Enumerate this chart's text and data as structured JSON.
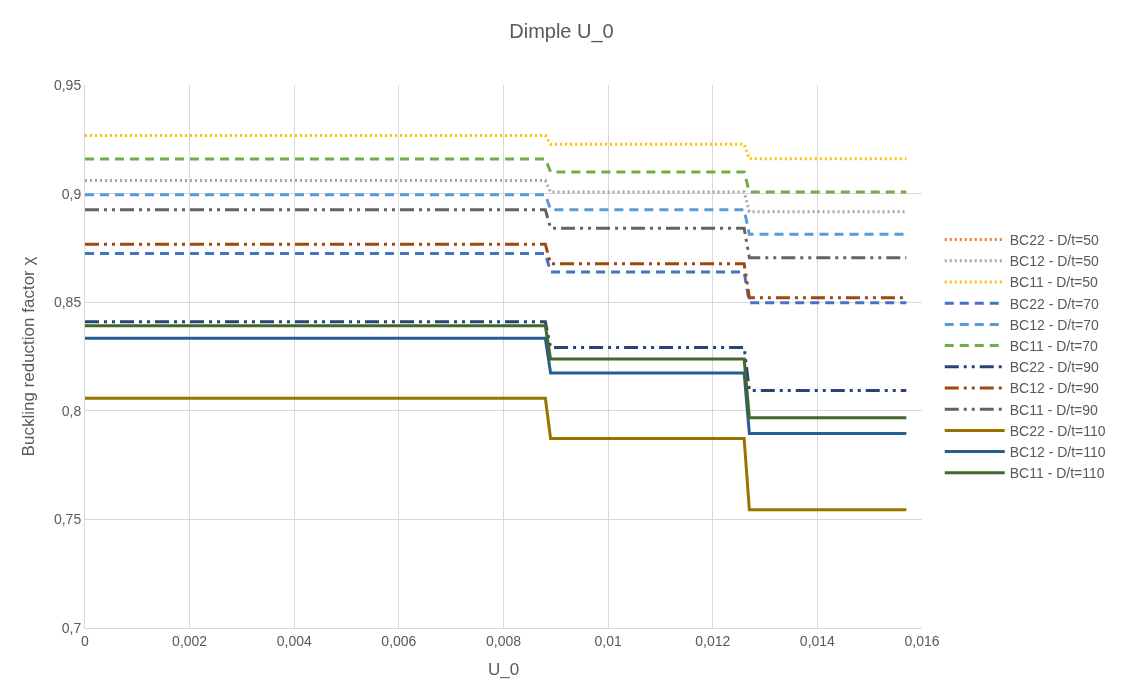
{
  "chart_data": {
    "type": "line",
    "title": "Dimple U_0",
    "xlabel": "U_0",
    "ylabel": "Buckling reduction factor χ",
    "x": [
      0,
      0.0088,
      0.0089,
      0.0126,
      0.0127,
      0.0157
    ],
    "xlim": [
      0,
      0.016
    ],
    "xticks": [
      0,
      {
        "value": 0.002,
        "label": "0,002"
      },
      {
        "value": 0.004,
        "label": "0,004"
      },
      {
        "value": 0.006,
        "label": "0,006"
      },
      {
        "value": 0.008,
        "label": "0,008"
      },
      {
        "value": 0.01,
        "label": "0,01"
      },
      {
        "value": 0.012,
        "label": "0,012"
      },
      {
        "value": 0.014,
        "label": "0,014"
      },
      {
        "value": 0.016,
        "label": "0,016"
      }
    ],
    "ylim": [
      0.7,
      0.95
    ],
    "yticks": [
      {
        "value": 0.7,
        "label": "0,7"
      },
      {
        "value": 0.75,
        "label": "0,75"
      },
      {
        "value": 0.8,
        "label": "0,8"
      },
      {
        "value": 0.85,
        "label": "0,85"
      },
      {
        "value": 0.9,
        "label": "0,9"
      },
      {
        "value": 0.95,
        "label": "0,95"
      }
    ],
    "grid": true,
    "legend": "right",
    "marker": "none",
    "series": [
      {
        "name": "BC22 - D/t=50",
        "color": "#ed7d31",
        "line_style": "dotted",
        "values": [
          null,
          null,
          null,
          null,
          null,
          null
        ]
      },
      {
        "name": "BC12 - D/t=50",
        "color": "#a5a5a5",
        "line_style": "dotted",
        "values": [
          0.906,
          0.906,
          0.9007,
          0.9007,
          0.8917,
          0.8917
        ]
      },
      {
        "name": "BC11 - D/t=50",
        "color": "#ffc000",
        "line_style": "dotted",
        "values": [
          0.9267,
          0.9267,
          0.9227,
          0.9227,
          0.916,
          0.916
        ]
      },
      {
        "name": "BC22 - D/t=70",
        "color": "#4472c4",
        "line_style": "dashed",
        "values": [
          0.8724,
          0.8724,
          0.8639,
          0.8639,
          0.8498,
          0.8498
        ]
      },
      {
        "name": "BC12 - D/t=70",
        "color": "#5b9bd5",
        "line_style": "dashed",
        "values": [
          0.8995,
          0.8995,
          0.8926,
          0.8926,
          0.8813,
          0.8813
        ]
      },
      {
        "name": "BC11 - D/t=70",
        "color": "#70ad47",
        "line_style": "dashed",
        "values": [
          0.9159,
          0.9159,
          0.91,
          0.91,
          0.9007,
          0.9007
        ]
      },
      {
        "name": "BC22 - D/t=90",
        "color": "#264478",
        "line_style": "dashdotdot",
        "values": [
          0.841,
          0.841,
          0.8292,
          0.8292,
          0.8093,
          0.8093
        ]
      },
      {
        "name": "BC12 - D/t=90",
        "color": "#9e480e",
        "line_style": "dashdotdot",
        "values": [
          0.8767,
          0.8767,
          0.8677,
          0.8677,
          0.8521,
          0.8521
        ]
      },
      {
        "name": "BC11 - D/t=90",
        "color": "#636363",
        "line_style": "dashdotdot",
        "values": [
          0.8926,
          0.8926,
          0.8841,
          0.8841,
          0.8705,
          0.8705
        ]
      },
      {
        "name": "BC22 - D/t=110",
        "color": "#997300",
        "line_style": "solid",
        "values": [
          0.8058,
          0.8058,
          0.7872,
          0.7872,
          0.7544,
          0.7544
        ]
      },
      {
        "name": "BC12 - D/t=110",
        "color": "#255e91",
        "line_style": "solid",
        "values": [
          0.8334,
          0.8334,
          0.8174,
          0.8174,
          0.7896,
          0.7896
        ]
      },
      {
        "name": "BC11 - D/t=110",
        "color": "#43682b",
        "line_style": "solid",
        "values": [
          0.8392,
          0.8392,
          0.8238,
          0.8238,
          0.7968,
          0.7968
        ]
      }
    ]
  }
}
